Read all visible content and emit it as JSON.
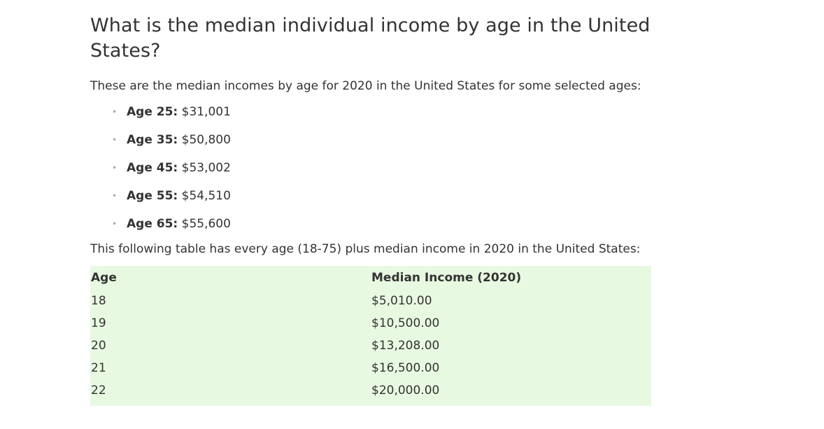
{
  "article": {
    "heading": "What is the median individual income by age in the United States?",
    "intro": "These are the median incomes by age for 2020 in the United States for some selected ages:",
    "highlights": [
      {
        "label": "Age 25:",
        "value": "$31,001"
      },
      {
        "label": "Age 35:",
        "value": "$50,800"
      },
      {
        "label": "Age 45:",
        "value": "$53,002"
      },
      {
        "label": "Age 55:",
        "value": "$54,510"
      },
      {
        "label": "Age 65:",
        "value": "$55,600"
      }
    ],
    "table_intro": "This following table has every age (18-75) plus median income in 2020 in the United States:"
  },
  "table": {
    "columns": [
      "Age",
      "Median Income (2020)"
    ],
    "rows": [
      [
        "18",
        "$5,010.00"
      ],
      [
        "19",
        "$10,500.00"
      ],
      [
        "20",
        "$13,208.00"
      ],
      [
        "21",
        "$16,500.00"
      ],
      [
        "22",
        "$20,000.00"
      ]
    ]
  },
  "colors": {
    "table_background": "#e8f9e1",
    "text": "#333333",
    "bullet": "#a8a8a8"
  }
}
